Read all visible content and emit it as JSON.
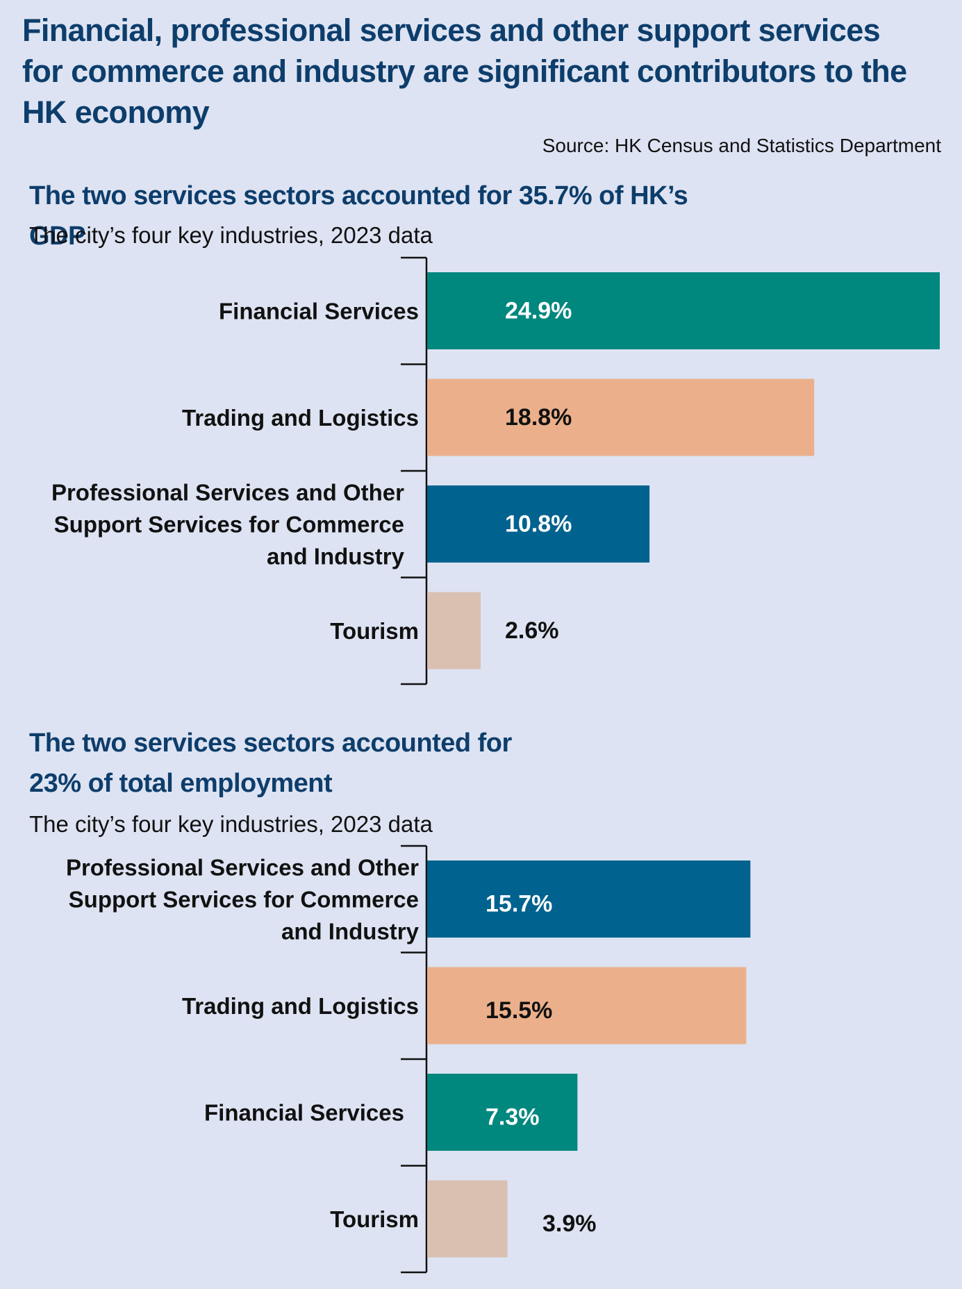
{
  "header": {
    "title": "Financial, professional services and other support services for commerce and industry are significant contributors to the HK economy",
    "source": "Source: HK Census and Statistics Department"
  },
  "colors": {
    "background": "#dde3f2",
    "heading": "#0d3d6b",
    "axis": "#111111"
  },
  "chart_data": [
    {
      "type": "bar",
      "orientation": "horizontal",
      "title": "The two services sectors accounted for 35.7% of HK’s GDP",
      "subtitle": "The city’s four key industries, 2023 data",
      "xlim": [
        0,
        24.9
      ],
      "unit": "%",
      "bars": [
        {
          "category": [
            "Financial Services"
          ],
          "value": 24.9,
          "label": "24.9%",
          "color": "#00877e",
          "label_color": "#ffffff",
          "label_inside": true
        },
        {
          "category": [
            "Trading and Logistics"
          ],
          "value": 18.8,
          "label": "18.8%",
          "color": "#ebb08b",
          "label_color": "#111111",
          "label_inside": true
        },
        {
          "category": [
            "Professional Services and Other",
            "Support Services for Commerce",
            "and Industry"
          ],
          "value": 10.8,
          "label": "10.8%",
          "color": "#00628f",
          "label_color": "#ffffff",
          "label_inside": true
        },
        {
          "category": [
            "Tourism"
          ],
          "value": 2.6,
          "label": "2.6%",
          "color": "#d9c0b1",
          "label_color": "#111111",
          "label_inside": false
        }
      ]
    },
    {
      "type": "bar",
      "orientation": "horizontal",
      "title": [
        "The two services sectors accounted for",
        "23% of total employment"
      ],
      "subtitle": "The city’s four key industries, 2023 data",
      "xlim": [
        0,
        24.9
      ],
      "unit": "%",
      "bars": [
        {
          "category": [
            "Professional Services and Other",
            "Support Services for Commerce",
            "and Industry"
          ],
          "value": 15.7,
          "label": "15.7%",
          "color": "#00628f",
          "label_color": "#ffffff",
          "label_inside": true
        },
        {
          "category": [
            "Trading and Logistics"
          ],
          "value": 15.5,
          "label": "15.5%",
          "color": "#ebb08b",
          "label_color": "#111111",
          "label_inside": true
        },
        {
          "category": [
            "Financial Services"
          ],
          "value": 7.3,
          "label": "7.3%",
          "color": "#00877e",
          "label_color": "#ffffff",
          "label_inside": true
        },
        {
          "category": [
            "Tourism"
          ],
          "value": 3.9,
          "label": "3.9%",
          "color": "#d9c0b1",
          "label_color": "#111111",
          "label_inside": false
        }
      ]
    }
  ]
}
